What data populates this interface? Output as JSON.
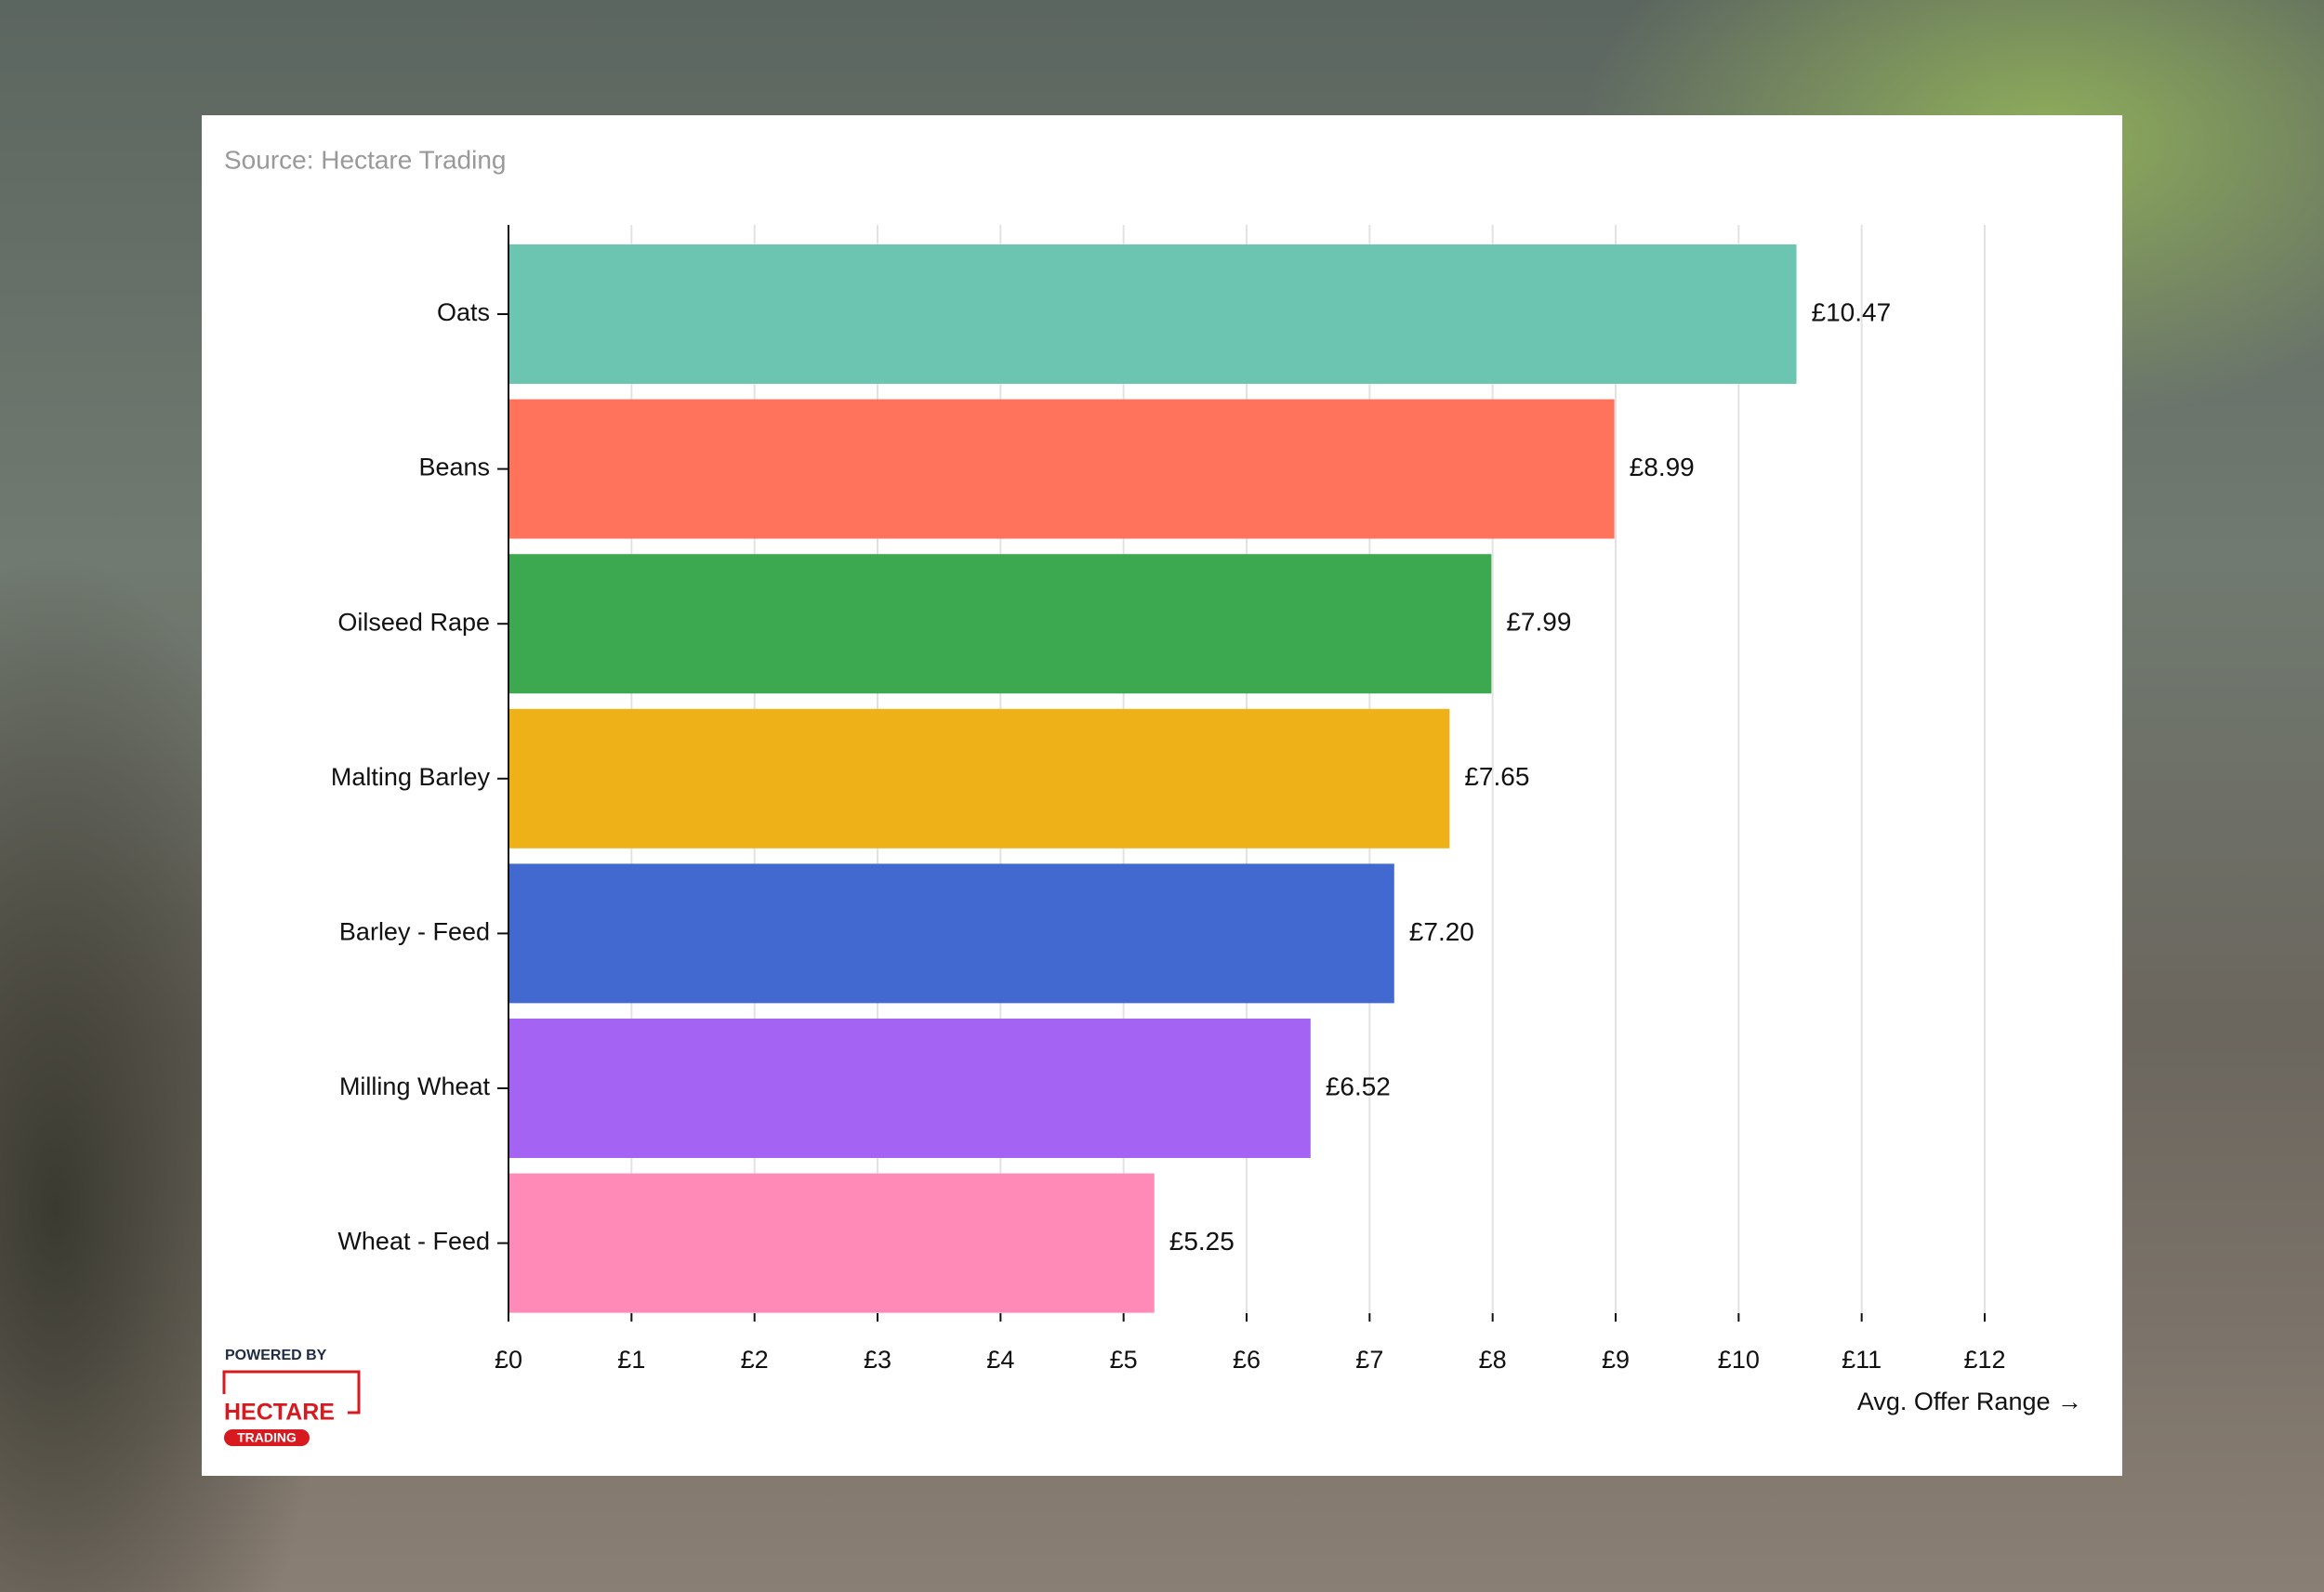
{
  "chart_data": {
    "type": "bar",
    "orientation": "horizontal",
    "source": "Source: Hectare Trading",
    "x_label": "Avg. Offer Range →",
    "categories": [
      "Oats",
      "Beans",
      "Oilseed Rape",
      "Malting Barley",
      "Barley - Feed",
      "Milling Wheat",
      "Wheat - Feed"
    ],
    "values": [
      10.47,
      8.99,
      7.99,
      7.65,
      7.2,
      6.52,
      5.25
    ],
    "value_labels": [
      "£10.47",
      "£8.99",
      "£7.99",
      "£7.65",
      "£7.20",
      "£6.52",
      "£5.25"
    ],
    "colors": [
      "#6cc5b0",
      "#ff725c",
      "#3ca951",
      "#efb118",
      "#4269d0",
      "#a463f2",
      "#ff8ab7"
    ],
    "xlim": [
      0,
      12
    ],
    "xticks": [
      {
        "value": 0,
        "label": "£0"
      },
      {
        "value": 1,
        "label": "£1"
      },
      {
        "value": 2,
        "label": "£2"
      },
      {
        "value": 3,
        "label": "£3"
      },
      {
        "value": 4,
        "label": "£4"
      },
      {
        "value": 5,
        "label": "£5"
      },
      {
        "value": 6,
        "label": "£6"
      },
      {
        "value": 7,
        "label": "£7"
      },
      {
        "value": 8,
        "label": "£8"
      },
      {
        "value": 9,
        "label": "£9"
      },
      {
        "value": 10,
        "label": "£10"
      },
      {
        "value": 11,
        "label": "£11"
      },
      {
        "value": 12,
        "label": "£12"
      }
    ],
    "grid": true,
    "logo": {
      "powered_by": "POWERED BY",
      "brand": "HECTARE",
      "sub": "TRADING"
    }
  }
}
